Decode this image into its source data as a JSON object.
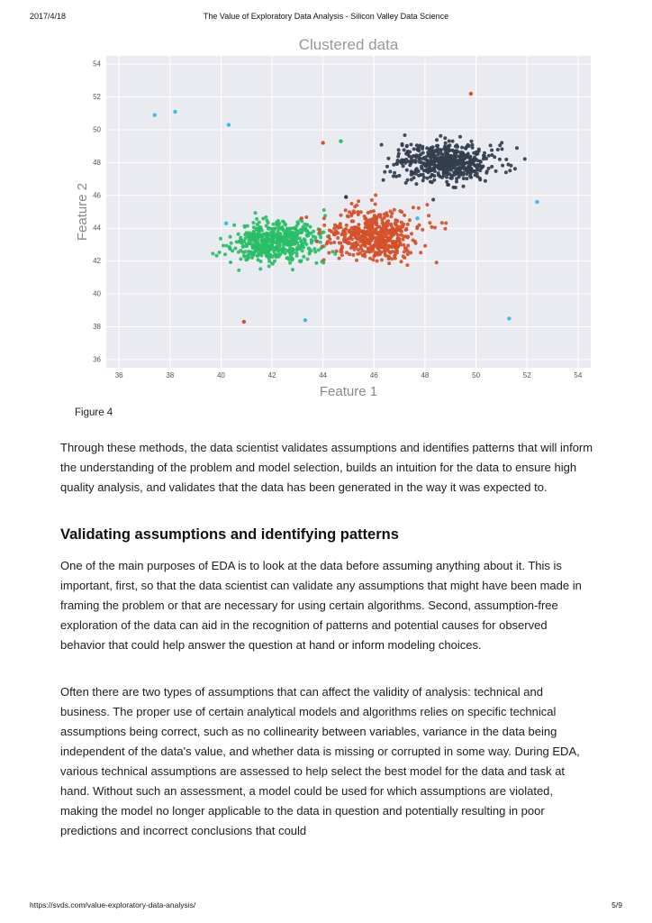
{
  "header": {
    "date": "2017/4/18",
    "title": "The Value of Exploratory Data Analysis - Silicon Valley Data Science"
  },
  "figure": {
    "caption": "Figure 4"
  },
  "chart_data": {
    "type": "scatter",
    "title": "Clustered data",
    "xlabel": "Feature 1",
    "ylabel": "Feature 2",
    "xlim": [
      35.5,
      54.5
    ],
    "ylim": [
      35.5,
      54.5
    ],
    "xticks": [
      36,
      38,
      40,
      42,
      44,
      46,
      48,
      50,
      52,
      54
    ],
    "yticks": [
      36,
      38,
      40,
      42,
      44,
      46,
      48,
      50,
      52,
      54
    ],
    "grid": true,
    "background": "#eaeaf1",
    "legend": "none",
    "clusters": [
      {
        "name": "cluster-green",
        "color": "#29bd68",
        "center": [
          42.1,
          43.2
        ],
        "std": [
          0.85,
          0.62
        ],
        "count": 500,
        "seed": 11
      },
      {
        "name": "cluster-orange",
        "color": "#d4512a",
        "center": [
          46.0,
          43.6
        ],
        "std": [
          0.85,
          0.75
        ],
        "count": 520,
        "seed": 22
      },
      {
        "name": "cluster-dark",
        "color": "#333e4e",
        "center": [
          48.8,
          48.0
        ],
        "std": [
          0.98,
          0.62
        ],
        "count": 540,
        "seed": 33
      }
    ],
    "outliers": [
      {
        "x": 37.4,
        "y": 50.9,
        "color": "#3ebde4"
      },
      {
        "x": 38.2,
        "y": 51.1,
        "color": "#3ebde4"
      },
      {
        "x": 40.3,
        "y": 50.3,
        "color": "#3ebde4"
      },
      {
        "x": 40.2,
        "y": 44.3,
        "color": "#3ebde4"
      },
      {
        "x": 52.4,
        "y": 45.6,
        "color": "#3ebde4"
      },
      {
        "x": 43.3,
        "y": 38.4,
        "color": "#3ebde4"
      },
      {
        "x": 51.3,
        "y": 38.5,
        "color": "#3ebde4"
      },
      {
        "x": 47.7,
        "y": 44.6,
        "color": "#3ebde4"
      },
      {
        "x": 44.0,
        "y": 49.2,
        "color": "#d4512a"
      },
      {
        "x": 49.8,
        "y": 52.2,
        "color": "#d4512a"
      },
      {
        "x": 40.9,
        "y": 38.3,
        "color": "#d4512a"
      },
      {
        "x": 44.7,
        "y": 49.3,
        "color": "#29bd68"
      },
      {
        "x": 44.9,
        "y": 45.9,
        "color": "#333e4e"
      }
    ]
  },
  "article": {
    "paragraph1": "Through these methods, the data scientist validates assumptions and identifies patterns that will inform the understanding of the problem and model selection, builds an intuition for the data to ensure high quality analysis, and validates that the data has been generated in the way it was expected to.",
    "heading": "Validating assumptions and identifying patterns",
    "paragraph2": "One of the main purposes of EDA is to look at the data before assuming anything about it. This is important, first, so that the data scientist can validate any assumptions that might have been made in framing the problem or that are necessary for using certain algorithms. Second, assumption-free exploration of the data can aid in the recognition of patterns and potential causes for observed behavior that could help answer the question at hand or inform modeling choices.",
    "paragraph3": "Often there are two types of assumptions that can affect the validity of analysis: technical and business. The proper use of certain analytical models and algorithms relies on specific technical assumptions being correct, such as no collinearity between variables, variance in the data being independent of the data's value, and whether data is missing or corrupted in some way. During EDA, various technical assumptions are assessed to help select the best model for the data and task at hand. Without such an assessment, a model could be used for which assumptions are violated, making the model no longer applicable to the data in question and potentially resulting in poor predictions and incorrect conclusions that could"
  },
  "footer": {
    "url": "https://svds.com/value-exploratory-data-analysis/",
    "page": "5/9"
  }
}
